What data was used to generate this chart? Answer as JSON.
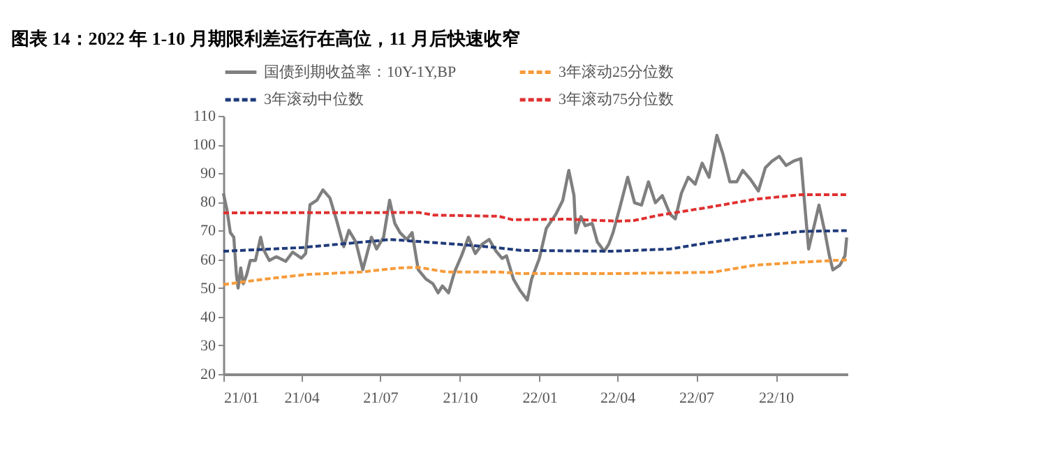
{
  "chart_data": {
    "type": "line",
    "title": "图表 14：2022 年 1-10 月期限利差运行在高位，11 月后快速收窄",
    "xlim": [
      "2021-01-01",
      "2022-12-23"
    ],
    "xticks": [
      {
        "value": "2021-01",
        "label": "21/01"
      },
      {
        "value": "2021-04",
        "label": "21/04"
      },
      {
        "value": "2021-07",
        "label": "21/07"
      },
      {
        "value": "2021-10",
        "label": "21/10"
      },
      {
        "value": "2022-01",
        "label": "22/01"
      },
      {
        "value": "2022-04",
        "label": "22/04"
      },
      {
        "value": "2022-07",
        "label": "22/07"
      },
      {
        "value": "2022-10",
        "label": "22/10"
      }
    ],
    "ylim": [
      20,
      110
    ],
    "yticks": [
      20,
      30,
      40,
      50,
      60,
      70,
      80,
      90,
      100,
      110
    ],
    "grid": false,
    "legend": "top",
    "series": [
      {
        "name": "国债到期收益率：10Y-1Y,BP",
        "color": "#7f7f7f",
        "line_style": "solid",
        "x": [
          "2021-01-01",
          "2021-01-05",
          "2021-01-09",
          "2021-01-13",
          "2021-01-16",
          "2021-01-18",
          "2021-01-21",
          "2021-01-24",
          "2021-01-28",
          "2021-02-01",
          "2021-02-07",
          "2021-02-13",
          "2021-02-16",
          "2021-02-23",
          "2021-03-03",
          "2021-03-14",
          "2021-03-22",
          "2021-04-01",
          "2021-04-06",
          "2021-04-11",
          "2021-04-19",
          "2021-04-26",
          "2021-05-04",
          "2021-05-12",
          "2021-05-20",
          "2021-05-26",
          "2021-06-03",
          "2021-06-11",
          "2021-06-21",
          "2021-06-27",
          "2021-07-05",
          "2021-07-12",
          "2021-07-18",
          "2021-07-24",
          "2021-08-01",
          "2021-08-07",
          "2021-08-14",
          "2021-08-23",
          "2021-08-31",
          "2021-09-06",
          "2021-09-11",
          "2021-09-18",
          "2021-09-25",
          "2021-10-03",
          "2021-10-11",
          "2021-10-19",
          "2021-10-27",
          "2021-11-04",
          "2021-11-12",
          "2021-11-19",
          "2021-11-24",
          "2021-12-02",
          "2021-12-10",
          "2021-12-18",
          "2021-12-23",
          "2022-01-01",
          "2022-01-09",
          "2022-01-20",
          "2022-01-28",
          "2022-02-04",
          "2022-02-10",
          "2022-02-12",
          "2022-02-18",
          "2022-02-23",
          "2022-03-03",
          "2022-03-09",
          "2022-03-17",
          "2022-03-22",
          "2022-03-27",
          "2022-04-04",
          "2022-04-13",
          "2022-04-21",
          "2022-04-29",
          "2022-05-07",
          "2022-05-15",
          "2022-05-23",
          "2022-06-01",
          "2022-06-07",
          "2022-06-14",
          "2022-06-22",
          "2022-06-30",
          "2022-07-08",
          "2022-07-16",
          "2022-07-25",
          "2022-08-01",
          "2022-08-09",
          "2022-08-17",
          "2022-08-24",
          "2022-09-02",
          "2022-09-11",
          "2022-09-19",
          "2022-09-27",
          "2022-10-05",
          "2022-10-13",
          "2022-10-22",
          "2022-10-30",
          "2022-11-04",
          "2022-11-08",
          "2022-11-15",
          "2022-11-20",
          "2022-11-27",
          "2022-12-02",
          "2022-12-06",
          "2022-12-14",
          "2022-12-20",
          "2022-12-22"
        ],
        "values": [
          83,
          77.4,
          69.3,
          67.7,
          54.7,
          50,
          57,
          51.5,
          54.7,
          59.6,
          59.6,
          67.7,
          63.6,
          59.6,
          60.9,
          59.3,
          62.5,
          60.4,
          62,
          79,
          80.6,
          84.2,
          81.4,
          73.3,
          64.4,
          70.1,
          66,
          56.4,
          67.7,
          63.6,
          67.7,
          80.6,
          72.5,
          69.3,
          66.9,
          69.3,
          56.4,
          53.1,
          51.5,
          48.3,
          50.7,
          48.3,
          55.6,
          61.2,
          67.7,
          62,
          65.3,
          66.9,
          62.8,
          60.3,
          61.2,
          53.1,
          49,
          45.8,
          53.1,
          60.3,
          70.8,
          75.7,
          80.5,
          91,
          82.2,
          69.2,
          74.9,
          71.7,
          72.5,
          66,
          62.8,
          65.2,
          69.2,
          78.1,
          88.6,
          79.7,
          78.9,
          87,
          79.7,
          82.2,
          75.7,
          74.1,
          83,
          88.6,
          86.2,
          93.5,
          88.6,
          103.2,
          96.7,
          87,
          87,
          91,
          87.8,
          83.8,
          91.9,
          94.3,
          95.9,
          92.7,
          94.3,
          95.1,
          77.3,
          63.6,
          72.5,
          78.9,
          69.2,
          61.2,
          56.3,
          57.9,
          61.2,
          67.6
        ]
      },
      {
        "name": "3年滚动25分位数",
        "color": "#f79b3a",
        "line_style": "dashed",
        "x": [
          "2021-01-01",
          "2021-02-18",
          "2021-04-07",
          "2021-06-10",
          "2021-07-23",
          "2021-08-14",
          "2021-09-15",
          "2021-11-15",
          "2021-12-10",
          "2022-03-27",
          "2022-07-20",
          "2022-09-06",
          "2022-10-30",
          "2022-12-22"
        ],
        "values": [
          51.2,
          53.1,
          54.7,
          55.6,
          57,
          57.2,
          55.6,
          55.6,
          55,
          55,
          55.5,
          57.9,
          59,
          59.8
        ]
      },
      {
        "name": "3年滚动中位数",
        "color": "#1f3a7a",
        "line_style": "dashed",
        "x": [
          "2021-01-01",
          "2021-04-02",
          "2021-05-31",
          "2021-07-13",
          "2021-08-24",
          "2021-09-25",
          "2021-11-12",
          "2021-12-10",
          "2022-03-27",
          "2022-06-01",
          "2022-07-20",
          "2022-09-06",
          "2022-10-30",
          "2022-12-22"
        ],
        "values": [
          62.8,
          64.1,
          65.7,
          66.9,
          66,
          65.3,
          64.1,
          63.1,
          62.8,
          63.6,
          66,
          68,
          69.7,
          70
        ]
      },
      {
        "name": "3年滚动75分位数",
        "color": "#e03030",
        "line_style": "dashed",
        "x": [
          "2021-01-01",
          "2021-08-15",
          "2021-09-01",
          "2021-11-15",
          "2021-12-01",
          "2022-02-01",
          "2022-04-01",
          "2022-04-20",
          "2022-05-20",
          "2022-07-15",
          "2022-09-06",
          "2022-10-30",
          "2022-12-22"
        ],
        "values": [
          76.2,
          76.3,
          75.4,
          75,
          73.8,
          74,
          73.3,
          73.5,
          75.4,
          78.1,
          80.9,
          82.5,
          82.5
        ]
      }
    ]
  }
}
